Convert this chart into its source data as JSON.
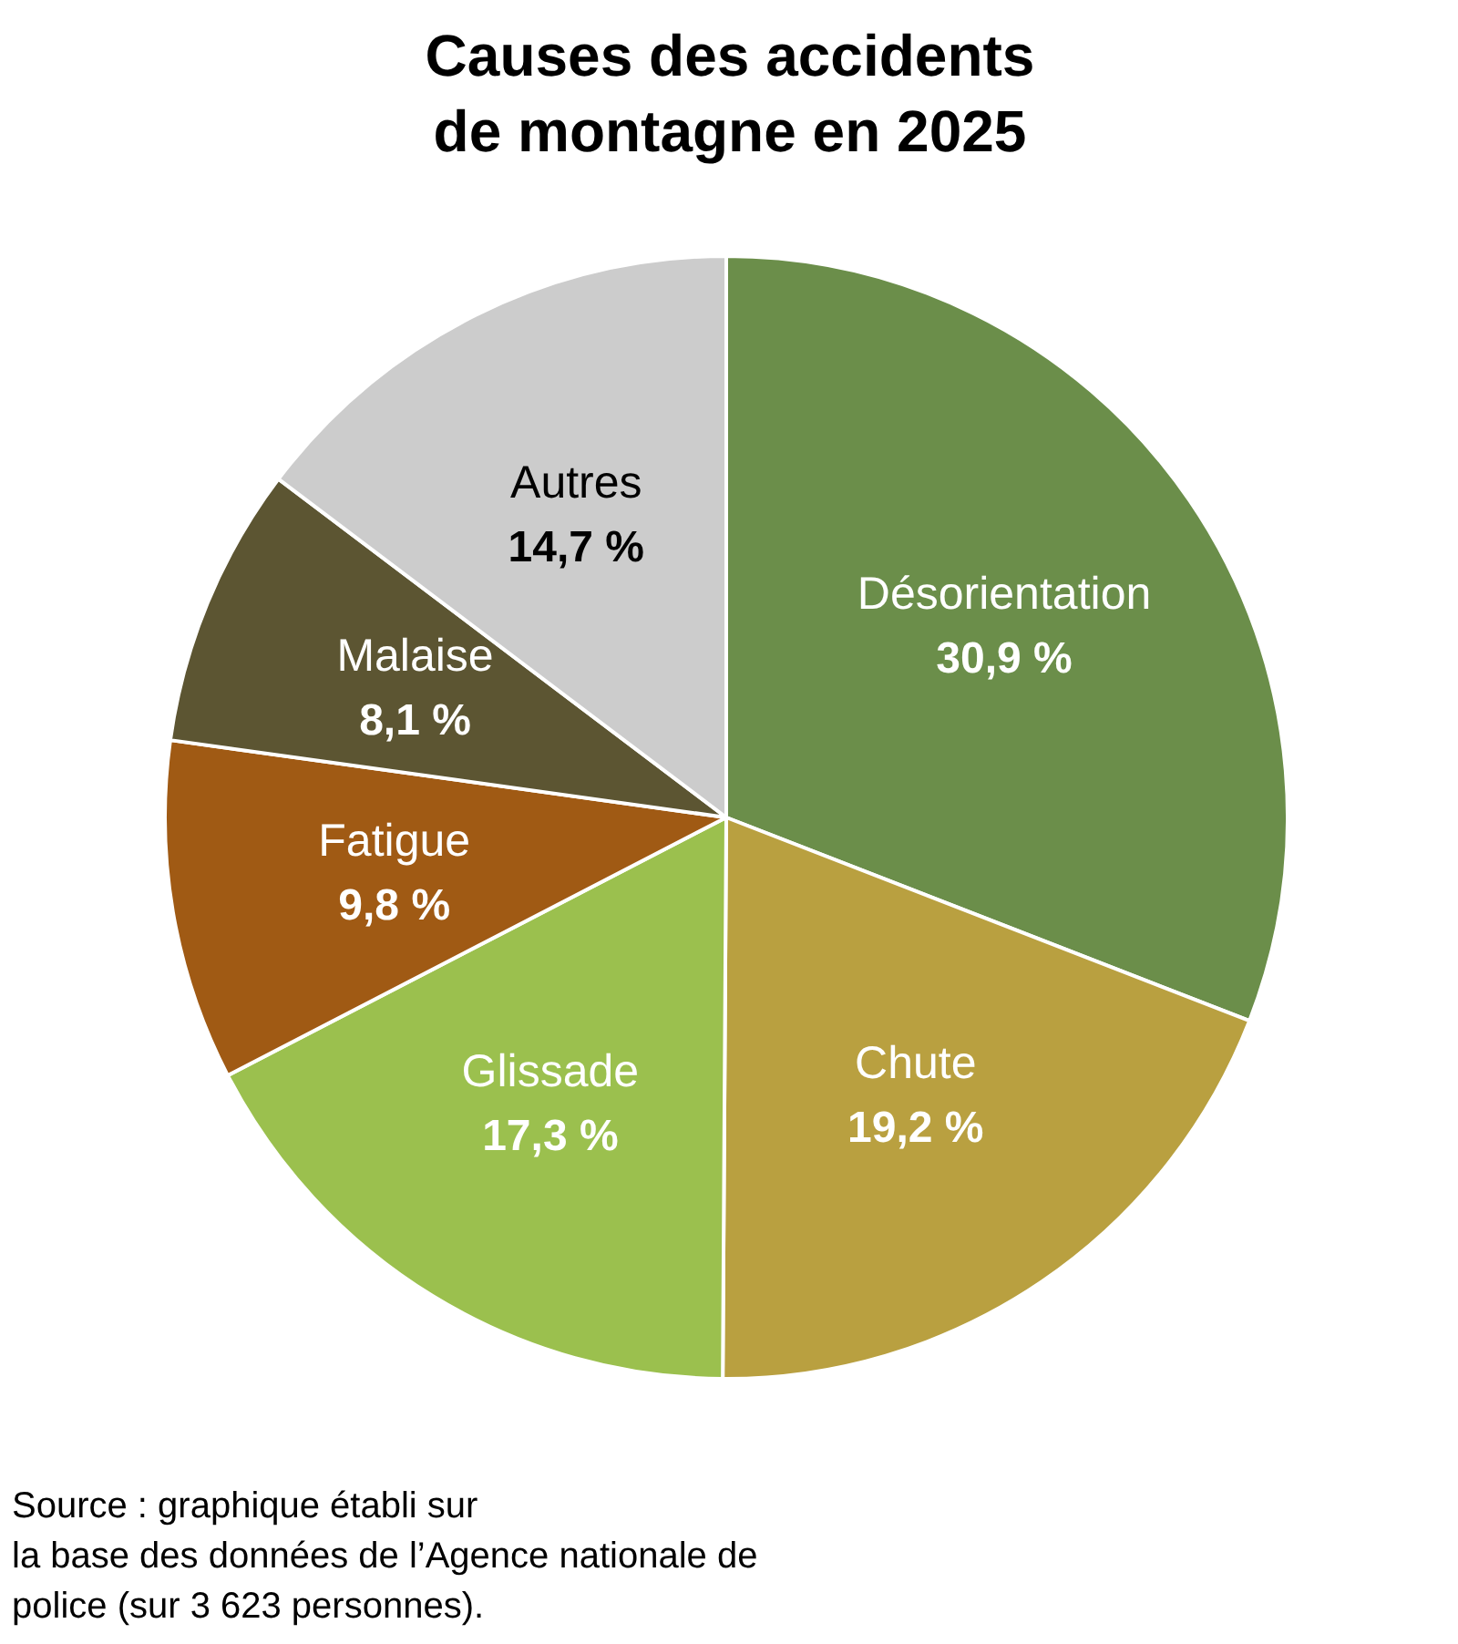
{
  "chart_data": {
    "type": "pie",
    "title": "Causes des accidents\nde montagne en 2025",
    "categories": [
      "Désorientation",
      "Chute",
      "Glissade",
      "Fatigue",
      "Malaise",
      "Autres"
    ],
    "values": [
      30.9,
      19.2,
      17.3,
      9.8,
      8.1,
      14.7
    ],
    "colors": [
      "#6b8e4a",
      "#b9a040",
      "#9bc04e",
      "#a05a14",
      "#5c5532",
      "#cccccc"
    ],
    "value_labels": [
      "30,9 %",
      "19,2 %",
      "17,3 %",
      "9,8 %",
      "8,1 %",
      "14,7 %"
    ],
    "annotations": [
      "Source : graphique établi sur\nla base des données de l’Agence nationale de\npolice (sur 3 623 personnes)."
    ]
  }
}
